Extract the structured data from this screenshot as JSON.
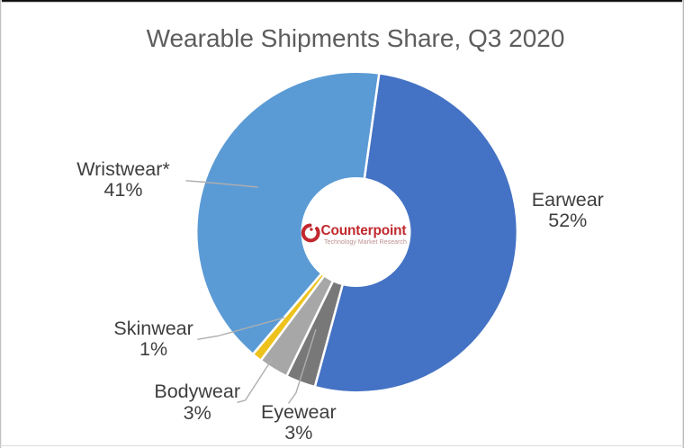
{
  "frame": {
    "top_bar_color": "#161616",
    "border_color": "#ababab",
    "background": "#ffffff"
  },
  "chart_data": {
    "type": "pie",
    "subtype": "doughnut",
    "title": "Wearable Shipments Share, Q3 2020",
    "title_color": "#5d5d5d",
    "start_angle_deg": 8,
    "direction": "clockwise",
    "hole_ratio": 0.34,
    "separator_color": "#ffffff",
    "legend_position": "none",
    "label_style": "category name + percent, outside with leader lines",
    "slices": [
      {
        "label": "Earwear",
        "pct_label": "52%",
        "value_pct": 52,
        "color": "#4472c4"
      },
      {
        "label": "Eyewear",
        "pct_label": "3%",
        "value_pct": 3,
        "color": "#787878"
      },
      {
        "label": "Bodywear",
        "pct_label": "3%",
        "value_pct": 3,
        "color": "#a7a7a7"
      },
      {
        "label": "Skinwear",
        "pct_label": "1%",
        "value_pct": 1,
        "color": "#eec21d"
      },
      {
        "label": "Wristwear*",
        "pct_label": "41%",
        "value_pct": 41,
        "color": "#5b9bd5"
      }
    ],
    "leader_line_color": "#aeaeae",
    "label_text_color": "#3e3e3e"
  },
  "logo": {
    "wordmark": "Counterpoint",
    "tagline": "Technology Market Research",
    "wordmark_color": "#c1292e",
    "tagline_color": "#bd8f8f",
    "icon": "red-ring-with-dot"
  }
}
